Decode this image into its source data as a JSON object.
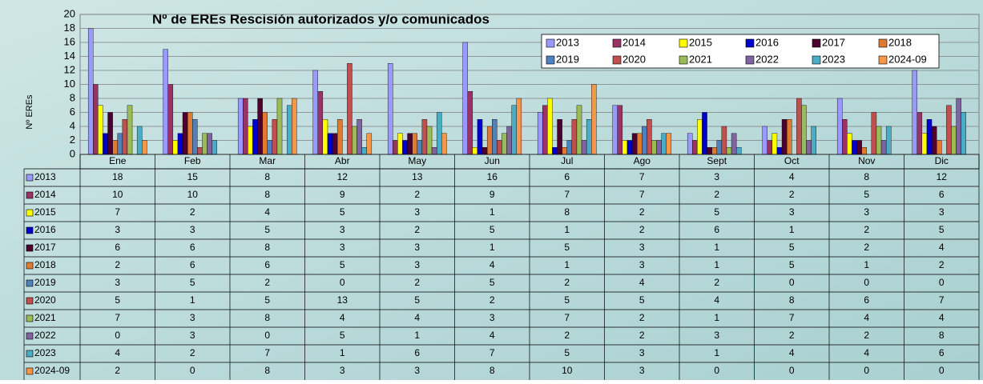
{
  "chart_data": {
    "type": "bar",
    "title": "Nº de EREs Rescisión autorizados y/o comunicados",
    "y_label": "Nº EREs",
    "categories": [
      "Ene",
      "Feb",
      "Mar",
      "Abr",
      "May",
      "Jun",
      "Jul",
      "Ago",
      "Sept",
      "Oct",
      "Nov",
      "Dic"
    ],
    "ylim": [
      0,
      20
    ],
    "yticks": [
      0,
      2,
      4,
      6,
      8,
      10,
      12,
      14,
      16,
      18,
      20
    ],
    "grid": true,
    "legend": "top-right",
    "series": [
      {
        "name": "2013",
        "color": "#9999ff",
        "values": [
          18,
          15,
          8,
          12,
          13,
          16,
          6,
          7,
          3,
          4,
          8,
          12
        ]
      },
      {
        "name": "2014",
        "color": "#993366",
        "values": [
          10,
          10,
          8,
          9,
          2,
          9,
          7,
          7,
          2,
          2,
          5,
          6
        ]
      },
      {
        "name": "2015",
        "color": "#ffff00",
        "values": [
          7,
          2,
          4,
          5,
          3,
          1,
          8,
          2,
          5,
          3,
          3,
          3
        ]
      },
      {
        "name": "2016",
        "color": "#0000cc",
        "values": [
          3,
          3,
          5,
          3,
          2,
          5,
          1,
          2,
          6,
          1,
          2,
          5
        ]
      },
      {
        "name": "2017",
        "color": "#4b0030",
        "values": [
          6,
          6,
          8,
          3,
          3,
          1,
          5,
          3,
          1,
          5,
          2,
          4
        ]
      },
      {
        "name": "2018",
        "color": "#e07a30",
        "values": [
          2,
          6,
          6,
          5,
          3,
          4,
          1,
          3,
          1,
          5,
          1,
          2
        ]
      },
      {
        "name": "2019",
        "color": "#4f81bd",
        "values": [
          3,
          5,
          2,
          0,
          2,
          5,
          2,
          4,
          2,
          0,
          0,
          0
        ]
      },
      {
        "name": "2020",
        "color": "#c0504d",
        "values": [
          5,
          1,
          5,
          13,
          5,
          2,
          5,
          5,
          4,
          8,
          6,
          7
        ]
      },
      {
        "name": "2021",
        "color": "#9bbb59",
        "values": [
          7,
          3,
          8,
          4,
          4,
          3,
          7,
          2,
          1,
          7,
          4,
          4
        ]
      },
      {
        "name": "2022",
        "color": "#8064a2",
        "values": [
          0,
          3,
          0,
          5,
          1,
          4,
          2,
          2,
          3,
          2,
          2,
          8
        ]
      },
      {
        "name": "2023",
        "color": "#4bacc6",
        "values": [
          4,
          2,
          7,
          1,
          6,
          7,
          5,
          3,
          1,
          4,
          4,
          6
        ]
      },
      {
        "name": "2024-09",
        "color": "#f79646",
        "values": [
          2,
          0,
          8,
          3,
          3,
          8,
          10,
          3,
          0,
          0,
          0,
          0
        ]
      }
    ]
  }
}
